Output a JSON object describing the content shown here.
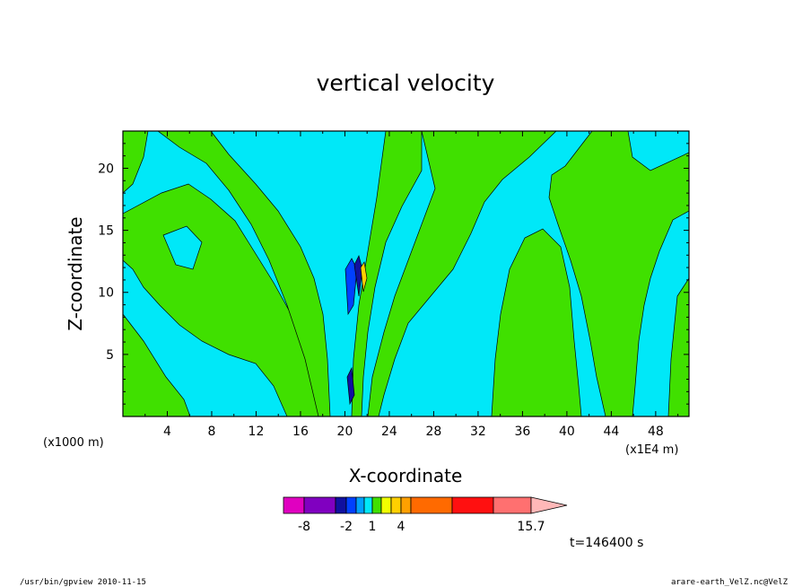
{
  "chart_data": {
    "type": "heatmap",
    "title": "vertical velocity",
    "xlabel": "X-coordinate",
    "ylabel": "Z-coordinate",
    "x_unit": "(x1E4 m)",
    "y_unit": "(x1000 m)",
    "xlim": [
      0,
      51
    ],
    "ylim": [
      0,
      23
    ],
    "x_ticks": [
      4,
      8,
      12,
      16,
      20,
      24,
      28,
      32,
      36,
      40,
      44,
      48
    ],
    "y_ticks": [
      5,
      10,
      15,
      20
    ],
    "colorbar": {
      "tick_labels": [
        {
          "value": -8,
          "label": "-8"
        },
        {
          "value": -2,
          "label": "-2"
        },
        {
          "value": 1,
          "label": "1"
        },
        {
          "value": 4,
          "label": "4"
        },
        {
          "value": 15.7,
          "label": "15.7"
        }
      ],
      "colors": [
        "#e000c0",
        "#8000c0",
        "#1010a0",
        "#0040ff",
        "#00a0ff",
        "#00e8f8",
        "#40e000",
        "#f0ff00",
        "#ffd000",
        "#ffa000",
        "#ff6a00",
        "#ff1010",
        "#ff7070",
        "#ffb8b8"
      ]
    },
    "background_color": "#00e8f8",
    "positive_color": "#40e000",
    "annotation": "t=146400 s"
  },
  "footer": {
    "left": "/usr/bin/gpview   2010-11-15",
    "right": "arare-earth_VelZ.nc@VelZ"
  }
}
